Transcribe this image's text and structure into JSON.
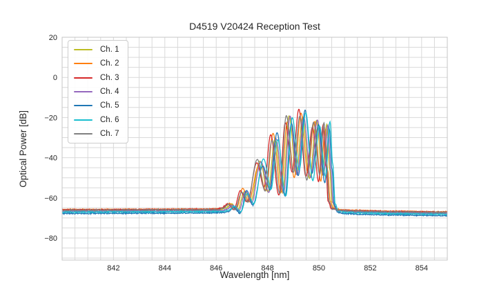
{
  "figure": {
    "background": "#ffffff"
  },
  "chart_data": {
    "type": "line",
    "title": "D4519 V20424 Reception Test",
    "xlabel": "Wavelength [nm]",
    "ylabel": "Optical Power [dB]",
    "xlim": [
      840,
      855
    ],
    "ylim": [
      -91,
      20
    ],
    "xticks": [
      842,
      844,
      846,
      848,
      850,
      852,
      854
    ],
    "yticks": [
      20,
      0,
      -20,
      -40,
      -60,
      -80
    ],
    "x_minor_step": 0.5,
    "y_minor_step": 5,
    "grid": true,
    "grid_color": "#d9d9d9",
    "spine_color": "#c4c4c4",
    "text_color": "#262626",
    "line_width": 1.3,
    "legend": {
      "position": "upper left"
    },
    "description": "Optical reception spectra of 7 channels: flat noise floor near -66 dB, oscillatory fringe passband from ~846.5 to ~850.4 nm rising to ~-18 dB near 849.3 nm, sharp cutoff back to the noise floor at ~850.4 nm.",
    "base_spectrum_nm_db": [
      [
        840.0,
        -66.2
      ],
      [
        841.0,
        -66.15
      ],
      [
        842.0,
        -66.1
      ],
      [
        843.0,
        -66.05
      ],
      [
        844.0,
        -66.0
      ],
      [
        845.0,
        -65.95
      ],
      [
        845.8,
        -65.9
      ],
      [
        846.15,
        -65.8
      ],
      [
        846.33,
        -65.2
      ],
      [
        846.55,
        -63.2
      ],
      [
        846.8,
        -66.0
      ],
      [
        847.06,
        -56.5
      ],
      [
        847.3,
        -62.0
      ],
      [
        847.68,
        -42.5
      ],
      [
        847.97,
        -56.0
      ],
      [
        848.24,
        -29.5
      ],
      [
        848.55,
        -58.0
      ],
      [
        848.8,
        -21.0
      ],
      [
        849.07,
        -48.0
      ],
      [
        849.33,
        -17.8
      ],
      [
        849.6,
        -49.5
      ],
      [
        849.86,
        -23.0
      ],
      [
        850.1,
        -50.5
      ],
      [
        850.27,
        -24.0
      ],
      [
        850.38,
        -45.0
      ],
      [
        850.47,
        -62.0
      ],
      [
        850.6,
        -65.6
      ],
      [
        850.9,
        -66.3
      ],
      [
        851.5,
        -66.6
      ],
      [
        853.0,
        -67.0
      ],
      [
        855.0,
        -67.3
      ]
    ],
    "channels": [
      {
        "label": "Ch. 1",
        "color": "#bcbd22",
        "dx": 0.04,
        "floor_shift": 0.1,
        "seed": 1
      },
      {
        "label": "Ch. 2",
        "color": "#ff7f0e",
        "dx": -0.03,
        "floor_shift": 0.3,
        "seed": 2
      },
      {
        "label": "Ch. 3",
        "color": "#d62728",
        "dx": -0.11,
        "floor_shift": 0.2,
        "seed": 3
      },
      {
        "label": "Ch. 4",
        "color": "#9467bd",
        "dx": 0.08,
        "floor_shift": -0.5,
        "seed": 4
      },
      {
        "label": "Ch. 5",
        "color": "#1f77b4",
        "dx": 0.13,
        "floor_shift": -1.6,
        "seed": 5
      },
      {
        "label": "Ch. 6",
        "color": "#17becf",
        "dx": 0.16,
        "floor_shift": -0.9,
        "seed": 6
      },
      {
        "label": "Ch. 7",
        "color": "#7f7f7f",
        "dx": -0.07,
        "floor_shift": 0.0,
        "seed": 7
      }
    ],
    "peak_jitter_db": 2.0,
    "floor_noise_db": 0.5
  }
}
